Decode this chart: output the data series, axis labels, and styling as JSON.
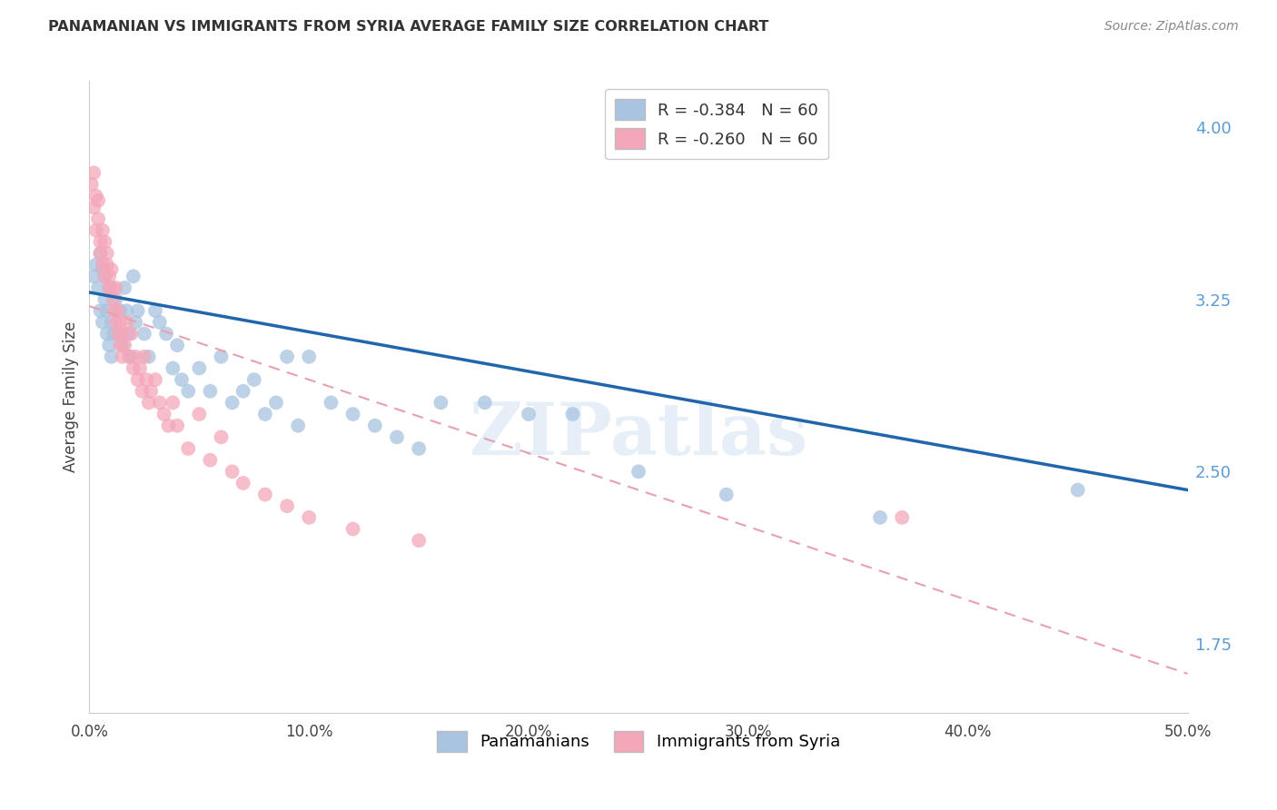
{
  "title": "PANAMANIAN VS IMMIGRANTS FROM SYRIA AVERAGE FAMILY SIZE CORRELATION CHART",
  "source": "Source: ZipAtlas.com",
  "ylabel": "Average Family Size",
  "yticks": [
    1.75,
    2.5,
    3.25,
    4.0
  ],
  "ytick_labels": [
    "1.75",
    "2.50",
    "3.25",
    "4.00"
  ],
  "xlim": [
    0.0,
    0.5
  ],
  "ylim": [
    1.45,
    4.2
  ],
  "legend_blue_r": "-0.384",
  "legend_blue_n": "60",
  "legend_pink_r": "-0.260",
  "legend_pink_n": "60",
  "legend_label_blue": "Panamanians",
  "legend_label_pink": "Immigrants from Syria",
  "watermark": "ZIPatlas",
  "blue_color": "#a8c4e0",
  "pink_color": "#f4a7b9",
  "line_blue_color": "#2166ac",
  "line_pink_color": "#e8a0b0",
  "blue_line_x": [
    0.0,
    0.5
  ],
  "blue_line_y": [
    3.28,
    2.42
  ],
  "pink_line_x": [
    0.0,
    0.5
  ],
  "pink_line_y": [
    3.22,
    1.62
  ],
  "background_color": "#ffffff",
  "grid_color": "#cccccc",
  "blue_scatter_x": [
    0.002,
    0.003,
    0.004,
    0.005,
    0.005,
    0.006,
    0.006,
    0.007,
    0.007,
    0.008,
    0.008,
    0.009,
    0.009,
    0.01,
    0.01,
    0.011,
    0.012,
    0.013,
    0.014,
    0.015,
    0.016,
    0.017,
    0.018,
    0.019,
    0.02,
    0.021,
    0.022,
    0.025,
    0.027,
    0.03,
    0.032,
    0.035,
    0.038,
    0.04,
    0.042,
    0.045,
    0.05,
    0.055,
    0.06,
    0.065,
    0.07,
    0.075,
    0.08,
    0.085,
    0.09,
    0.095,
    0.1,
    0.11,
    0.12,
    0.13,
    0.14,
    0.15,
    0.16,
    0.18,
    0.2,
    0.22,
    0.25,
    0.29,
    0.36,
    0.45
  ],
  "blue_scatter_y": [
    3.35,
    3.4,
    3.3,
    3.45,
    3.2,
    3.38,
    3.15,
    3.25,
    3.35,
    3.1,
    3.2,
    3.3,
    3.05,
    3.15,
    3.0,
    3.1,
    3.25,
    3.1,
    3.2,
    3.05,
    3.3,
    3.2,
    3.1,
    3.0,
    3.35,
    3.15,
    3.2,
    3.1,
    3.0,
    3.2,
    3.15,
    3.1,
    2.95,
    3.05,
    2.9,
    2.85,
    2.95,
    2.85,
    3.0,
    2.8,
    2.85,
    2.9,
    2.75,
    2.8,
    3.0,
    2.7,
    3.0,
    2.8,
    2.75,
    2.7,
    2.65,
    2.6,
    2.8,
    2.8,
    2.75,
    2.75,
    2.5,
    2.4,
    2.3,
    2.42
  ],
  "pink_scatter_x": [
    0.001,
    0.002,
    0.002,
    0.003,
    0.003,
    0.004,
    0.004,
    0.005,
    0.005,
    0.006,
    0.006,
    0.007,
    0.007,
    0.008,
    0.008,
    0.009,
    0.009,
    0.01,
    0.01,
    0.011,
    0.011,
    0.012,
    0.012,
    0.013,
    0.013,
    0.014,
    0.014,
    0.015,
    0.015,
    0.016,
    0.017,
    0.018,
    0.019,
    0.02,
    0.021,
    0.022,
    0.023,
    0.024,
    0.025,
    0.026,
    0.027,
    0.028,
    0.03,
    0.032,
    0.034,
    0.036,
    0.038,
    0.04,
    0.045,
    0.05,
    0.055,
    0.06,
    0.065,
    0.07,
    0.08,
    0.09,
    0.1,
    0.12,
    0.15,
    0.37
  ],
  "pink_scatter_y": [
    3.75,
    3.8,
    3.65,
    3.7,
    3.55,
    3.68,
    3.6,
    3.5,
    3.45,
    3.55,
    3.4,
    3.5,
    3.35,
    3.4,
    3.45,
    3.35,
    3.3,
    3.38,
    3.3,
    3.2,
    3.25,
    3.3,
    3.15,
    3.2,
    3.1,
    3.15,
    3.05,
    3.1,
    3.0,
    3.05,
    3.15,
    3.0,
    3.1,
    2.95,
    3.0,
    2.9,
    2.95,
    2.85,
    3.0,
    2.9,
    2.8,
    2.85,
    2.9,
    2.8,
    2.75,
    2.7,
    2.8,
    2.7,
    2.6,
    2.75,
    2.55,
    2.65,
    2.5,
    2.45,
    2.4,
    2.35,
    2.3,
    2.25,
    2.2,
    2.3
  ]
}
